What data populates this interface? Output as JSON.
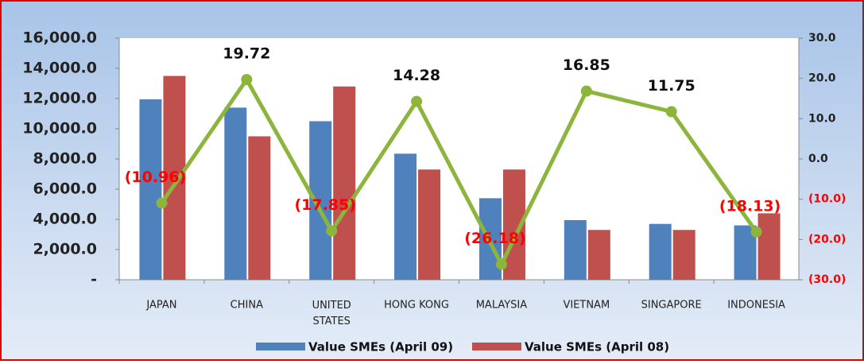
{
  "chart_data": {
    "type": "bar",
    "categories": [
      "JAPAN",
      "CHINA",
      "UNITED STATES",
      "HONG KONG",
      "MALAYSIA",
      "VIETNAM",
      "SINGAPORE",
      "INDONESIA"
    ],
    "series": [
      {
        "name": "Value SMEs (April 09)",
        "color": "#4f81bd",
        "values": [
          11950,
          11400,
          10500,
          8350,
          5400,
          3950,
          3700,
          3600
        ]
      },
      {
        "name": "Value SMEs (April 08)",
        "color": "#c0504d",
        "values": [
          13500,
          9500,
          12800,
          7300,
          7300,
          3300,
          3300,
          4400
        ]
      },
      {
        "type": "line",
        "axis": "y2",
        "color": "#8db53c",
        "values": [
          -10.96,
          19.72,
          -17.85,
          14.28,
          -26.18,
          16.85,
          11.75,
          -18.13
        ],
        "value_labels": [
          "(10.96)",
          "19.72",
          "(17.85)",
          "14.28",
          "(26.18)",
          "16.85",
          "11.75",
          "(18.13)"
        ]
      }
    ],
    "ylim": [
      0,
      16000
    ],
    "yticks": [
      {
        "value": 0,
        "label": "-"
      },
      {
        "value": 2000,
        "label": "2,000.0"
      },
      {
        "value": 4000,
        "label": "4,000.0"
      },
      {
        "value": 6000,
        "label": "6,000.0"
      },
      {
        "value": 8000,
        "label": "8,000.0"
      },
      {
        "value": 10000,
        "label": "10,000.0"
      },
      {
        "value": 12000,
        "label": "12,000.0"
      },
      {
        "value": 14000,
        "label": "14,000.0"
      },
      {
        "value": 16000,
        "label": "16,000.0"
      }
    ],
    "y2lim": [
      -30,
      30
    ],
    "y2ticks": [
      {
        "value": -30,
        "label": "(30.0)"
      },
      {
        "value": -20,
        "label": "(20.0)"
      },
      {
        "value": -10,
        "label": "(10.0)"
      },
      {
        "value": 0,
        "label": "0.0"
      },
      {
        "value": 10,
        "label": "10.0"
      },
      {
        "value": 20,
        "label": "20.0"
      },
      {
        "value": 30,
        "label": "30.0"
      }
    ],
    "negative_color": "#ff0000",
    "legend": "bottom"
  }
}
